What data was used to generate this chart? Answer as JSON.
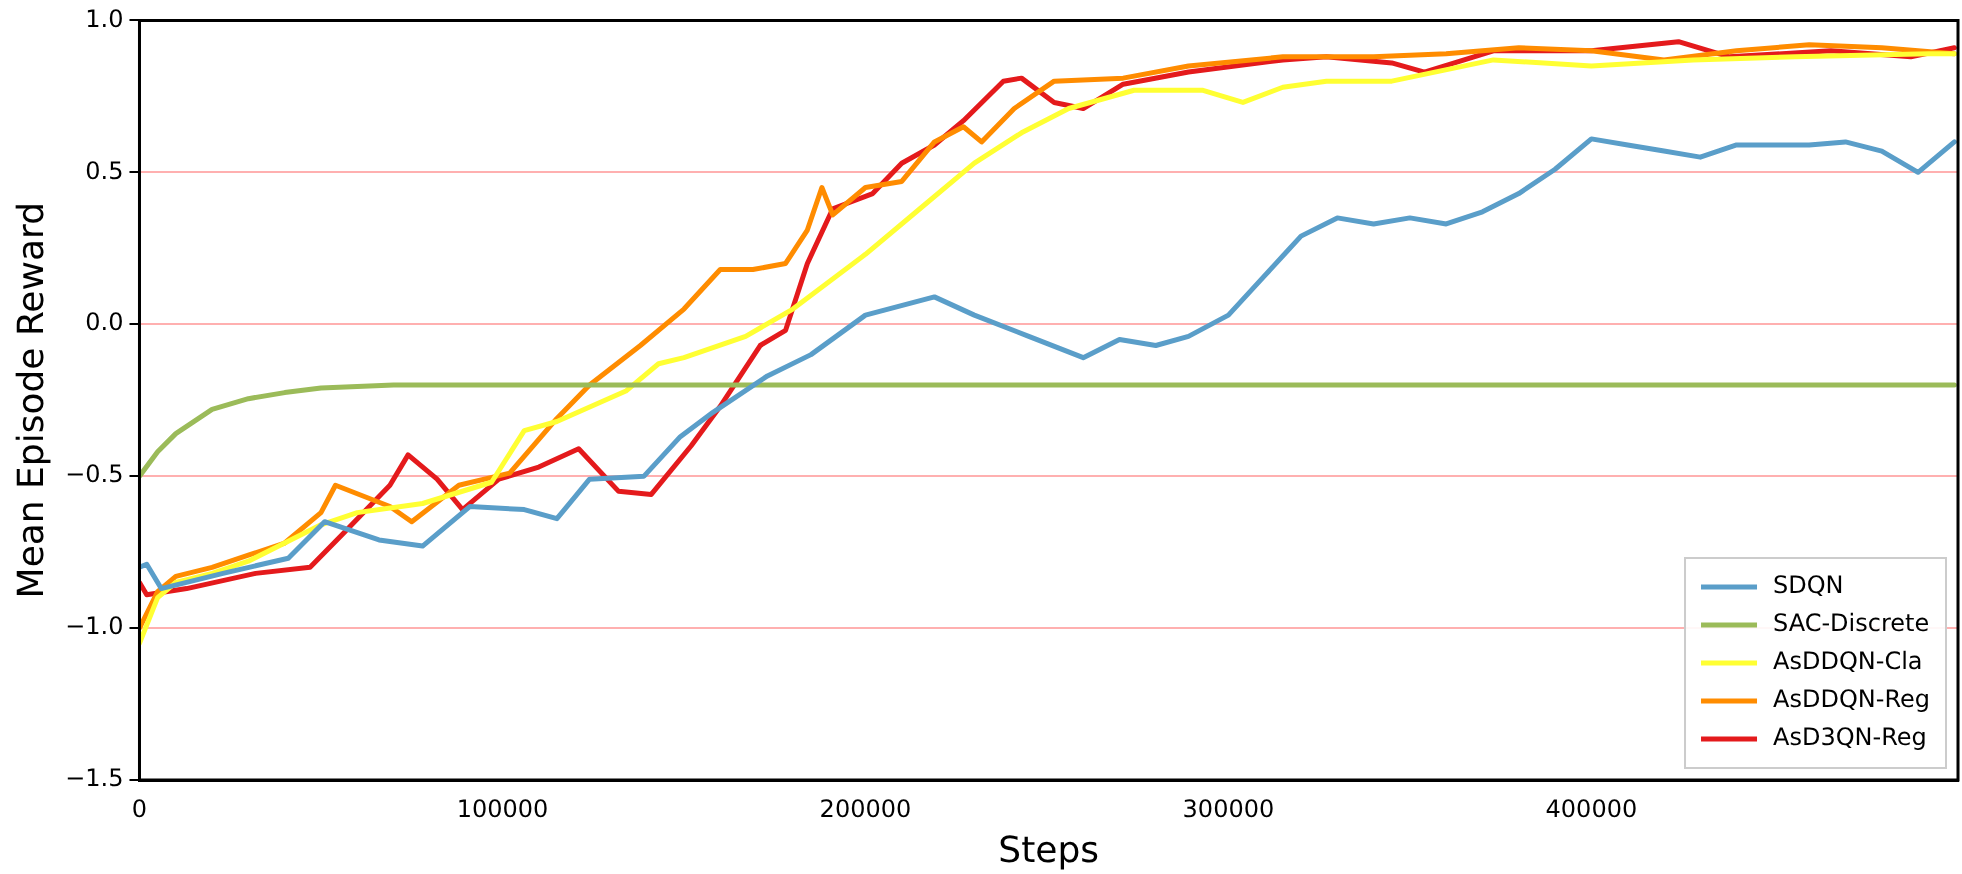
{
  "chart_data": {
    "type": "line",
    "xlabel": "Steps",
    "ylabel": "Mean Episode Reward",
    "xlim": [
      0,
      501000
    ],
    "xticks": [
      0,
      100000,
      200000,
      300000,
      400000
    ],
    "ylim": [
      -1.5,
      1.0
    ],
    "yticks": [
      {
        "value": -1.5,
        "label": "−1.5"
      },
      {
        "value": -1.0,
        "label": "−1.0"
      },
      {
        "value": -0.5,
        "label": "−0.5"
      },
      {
        "value": 0,
        "label": "0.0"
      },
      {
        "value": 0.5,
        "label": "0.5"
      },
      {
        "value": 1.0,
        "label": "1.0"
      }
    ],
    "grid": "y",
    "legend": "bottom right",
    "marker": "none",
    "line_style": "solid",
    "series": [
      {
        "name": "SDQN",
        "color": "#5a9ec9",
        "x": [
          0,
          2000,
          6000,
          23000,
          41000,
          51000,
          66000,
          78000,
          91000,
          106000,
          115000,
          124000,
          139000,
          149000,
          158000,
          173000,
          185000,
          200000,
          219000,
          230000,
          245000,
          260000,
          270000,
          280000,
          289000,
          300000,
          310000,
          320000,
          330000,
          340000,
          350000,
          360000,
          370000,
          380000,
          390000,
          400000,
          410000,
          420000,
          430000,
          440000,
          450000,
          460000,
          470000,
          480000,
          490000,
          500000
        ],
        "values": [
          -0.8,
          -0.79,
          -0.87,
          -0.82,
          -0.77,
          -0.65,
          -0.71,
          -0.73,
          -0.6,
          -0.61,
          -0.64,
          -0.51,
          -0.5,
          -0.37,
          -0.29,
          -0.17,
          -0.1,
          0.03,
          0.09,
          0.03,
          -0.04,
          -0.11,
          -0.05,
          -0.07,
          -0.04,
          0.03,
          0.16,
          0.29,
          0.35,
          0.33,
          0.35,
          0.33,
          0.37,
          0.43,
          0.51,
          0.61,
          0.59,
          0.57,
          0.55,
          0.59,
          0.59,
          0.59,
          0.6,
          0.57,
          0.5,
          0.6
        ]
      },
      {
        "name": "SAC-Discrete",
        "color": "#9bbb59",
        "x": [
          0,
          5000,
          10000,
          20000,
          30000,
          40000,
          50000,
          70000,
          500000
        ],
        "values": [
          -0.5,
          -0.42,
          -0.36,
          -0.28,
          -0.245,
          -0.225,
          -0.21,
          -0.2,
          -0.2
        ]
      },
      {
        "name": "AsDDQN-Cla",
        "color": "#ffff33",
        "x": [
          0,
          5000,
          10000,
          20000,
          30000,
          40000,
          50000,
          60000,
          78000,
          97000,
          106000,
          115000,
          134000,
          143000,
          150000,
          167000,
          180000,
          200000,
          215000,
          230000,
          243000,
          256000,
          274000,
          293000,
          304000,
          315000,
          327000,
          345000,
          373000,
          400000,
          428000,
          456000,
          493000,
          500000
        ],
        "values": [
          -1.05,
          -0.9,
          -0.85,
          -0.82,
          -0.78,
          -0.72,
          -0.66,
          -0.62,
          -0.59,
          -0.52,
          -0.35,
          -0.32,
          -0.22,
          -0.13,
          -0.11,
          -0.04,
          0.05,
          0.23,
          0.38,
          0.53,
          0.63,
          0.71,
          0.77,
          0.77,
          0.73,
          0.78,
          0.8,
          0.8,
          0.87,
          0.85,
          0.87,
          0.88,
          0.89,
          0.89
        ]
      },
      {
        "name": "AsDDQN-Reg",
        "color": "#ff8c00",
        "x": [
          0,
          5000,
          10000,
          20000,
          30000,
          40000,
          50000,
          54000,
          69000,
          75000,
          88000,
          102000,
          115000,
          124000,
          138000,
          150000,
          160000,
          169000,
          178000,
          184000,
          188000,
          191000,
          200000,
          210000,
          219000,
          227000,
          232000,
          241000,
          252000,
          271000,
          289000,
          315000,
          340000,
          360000,
          380000,
          400000,
          420000,
          440000,
          460000,
          480000,
          500000
        ],
        "values": [
          -1.0,
          -0.88,
          -0.83,
          -0.8,
          -0.76,
          -0.72,
          -0.62,
          -0.53,
          -0.6,
          -0.65,
          -0.53,
          -0.49,
          -0.31,
          -0.2,
          -0.07,
          0.05,
          0.18,
          0.18,
          0.2,
          0.31,
          0.45,
          0.36,
          0.45,
          0.47,
          0.6,
          0.65,
          0.6,
          0.71,
          0.8,
          0.81,
          0.85,
          0.88,
          0.88,
          0.89,
          0.91,
          0.9,
          0.87,
          0.9,
          0.92,
          0.91,
          0.89
        ]
      },
      {
        "name": "AsD3QN-Reg",
        "color": "#e41a1c",
        "x": [
          0,
          2000,
          13000,
          32000,
          47000,
          56000,
          69000,
          74000,
          82000,
          89000,
          99000,
          110000,
          121000,
          132000,
          141000,
          152000,
          160000,
          171000,
          178000,
          184000,
          191000,
          202000,
          210000,
          219000,
          227000,
          238000,
          243000,
          252000,
          260000,
          271000,
          289000,
          315000,
          327000,
          345000,
          354000,
          373000,
          400000,
          424000,
          438000,
          466000,
          488000,
          500000
        ],
        "values": [
          -0.85,
          -0.89,
          -0.87,
          -0.82,
          -0.8,
          -0.69,
          -0.53,
          -0.43,
          -0.51,
          -0.61,
          -0.51,
          -0.47,
          -0.41,
          -0.55,
          -0.56,
          -0.4,
          -0.27,
          -0.07,
          -0.02,
          0.2,
          0.38,
          0.43,
          0.53,
          0.59,
          0.67,
          0.8,
          0.81,
          0.73,
          0.71,
          0.79,
          0.83,
          0.87,
          0.88,
          0.86,
          0.83,
          0.9,
          0.9,
          0.93,
          0.88,
          0.9,
          0.88,
          0.91
        ]
      }
    ]
  }
}
